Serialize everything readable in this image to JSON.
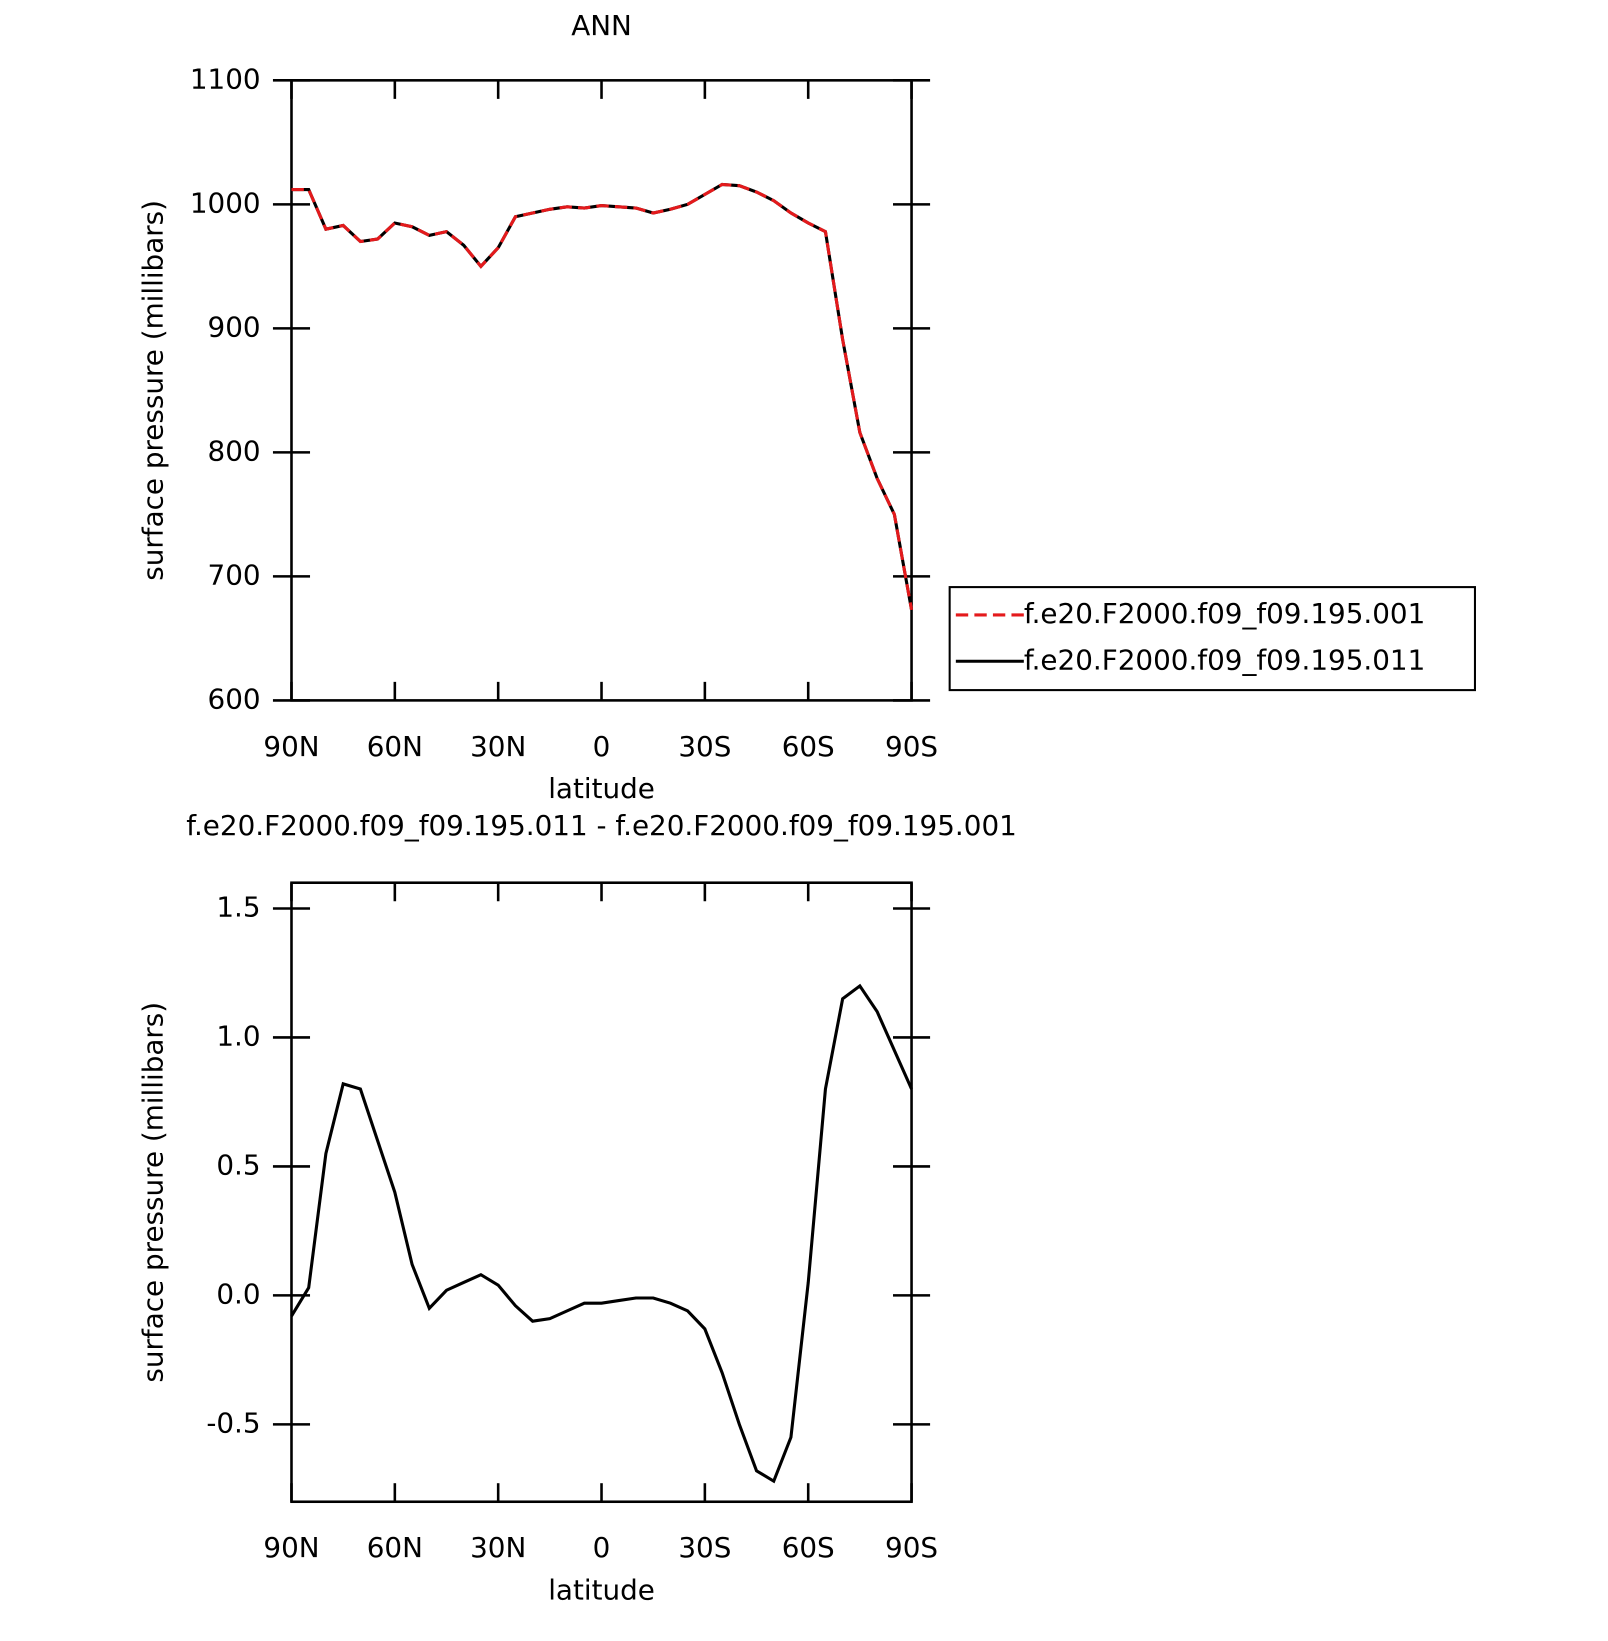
{
  "chart_data": [
    {
      "type": "line",
      "title": "ANN",
      "x_label": "latitude",
      "y_label": "surface pressure (millibars)",
      "x": [
        90,
        85,
        80,
        75,
        70,
        65,
        60,
        55,
        50,
        45,
        40,
        35,
        30,
        25,
        20,
        15,
        10,
        5,
        0,
        -5,
        -10,
        -15,
        -20,
        -25,
        -30,
        -35,
        -40,
        -45,
        -50,
        -55,
        -60,
        -65,
        -70,
        -75,
        -80,
        -85,
        -90
      ],
      "xlim": [
        90,
        -90
      ],
      "xticks": [
        {
          "value": 90,
          "label": "90N"
        },
        {
          "value": 60,
          "label": "60N"
        },
        {
          "value": 30,
          "label": "30N"
        },
        0,
        {
          "value": -30,
          "label": "30S"
        },
        {
          "value": -60,
          "label": "60S"
        },
        {
          "value": -90,
          "label": "90S"
        }
      ],
      "ylim": [
        600,
        1100
      ],
      "yticks": [
        600,
        700,
        800,
        900,
        1000,
        1100
      ],
      "series": [
        {
          "name": "f.e20.F2000.f09_f09.195.001",
          "color": "#e41a1c",
          "dash": true,
          "values": [
            1012,
            1012,
            980,
            983,
            970,
            972,
            985,
            982,
            975,
            978,
            967,
            950,
            965,
            990,
            993,
            996,
            998,
            997,
            999,
            998,
            997,
            993,
            996,
            1000,
            1008,
            1016,
            1015,
            1010,
            1003,
            993,
            985,
            978,
            891,
            816,
            779,
            750,
            673
          ]
        },
        {
          "name": "f.e20.F2000.f09_f09.195.011",
          "color": "#000000",
          "dash": false,
          "values": [
            1012,
            1012,
            980,
            983,
            970,
            972,
            985,
            982,
            975,
            978,
            967,
            950,
            965,
            990,
            993,
            996,
            998,
            997,
            999,
            998,
            997,
            993,
            996,
            1000,
            1008,
            1016,
            1015,
            1010,
            1003,
            993,
            985,
            978,
            891,
            816,
            779,
            750,
            673
          ]
        }
      ]
    },
    {
      "type": "line",
      "title": "f.e20.F2000.f09_f09.195.011 - f.e20.F2000.f09_f09.195.001",
      "x_label": "latitude",
      "y_label": "surface pressure (millibars)",
      "x": [
        90,
        85,
        80,
        75,
        70,
        65,
        60,
        55,
        50,
        45,
        40,
        35,
        30,
        25,
        20,
        15,
        10,
        5,
        0,
        -5,
        -10,
        -15,
        -20,
        -25,
        -30,
        -35,
        -40,
        -45,
        -50,
        -55,
        -60,
        -65,
        -70,
        -75,
        -80,
        -85,
        -90
      ],
      "xlim": [
        90,
        -90
      ],
      "xticks": [
        {
          "value": 90,
          "label": "90N"
        },
        {
          "value": 60,
          "label": "60N"
        },
        {
          "value": 30,
          "label": "30N"
        },
        0,
        {
          "value": -30,
          "label": "30S"
        },
        {
          "value": -60,
          "label": "60S"
        },
        {
          "value": -90,
          "label": "90S"
        }
      ],
      "ylim": [
        -0.8,
        1.6
      ],
      "yticks": [
        -0.5,
        {
          "value": 0,
          "label": "0.0"
        },
        0.5,
        {
          "value": 1,
          "label": "1.0"
        },
        1.5
      ],
      "color": "#000000",
      "values": [
        -0.08,
        0.03,
        0.55,
        0.82,
        0.8,
        0.6,
        0.4,
        0.12,
        -0.05,
        0.02,
        0.05,
        0.08,
        0.04,
        -0.04,
        -0.1,
        -0.09,
        -0.06,
        -0.03,
        -0.03,
        -0.02,
        -0.01,
        -0.01,
        -0.03,
        -0.06,
        -0.13,
        -0.3,
        -0.5,
        -0.68,
        -0.72,
        -0.55,
        0.05,
        0.8,
        1.15,
        1.2,
        1.1,
        0.95,
        0.8
      ]
    }
  ]
}
